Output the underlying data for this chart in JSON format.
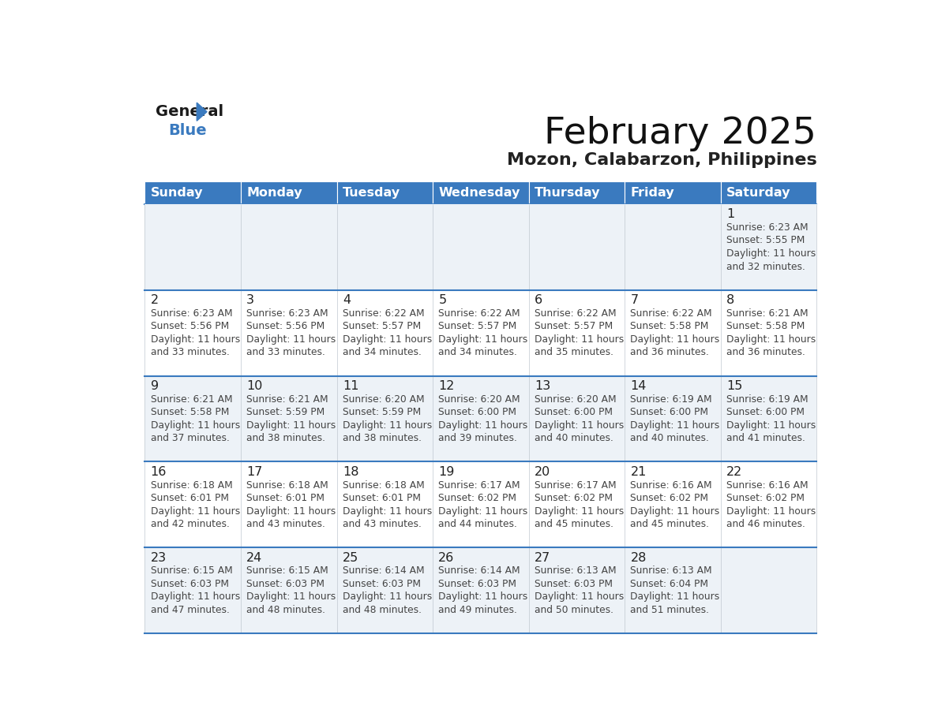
{
  "title": "February 2025",
  "subtitle": "Mozon, Calabarzon, Philippines",
  "header_bg": "#3a7abf",
  "header_text": "#ffffff",
  "day_names": [
    "Sunday",
    "Monday",
    "Tuesday",
    "Wednesday",
    "Thursday",
    "Friday",
    "Saturday"
  ],
  "cell_bg_light": "#edf2f7",
  "cell_bg_white": "#ffffff",
  "separator_color": "#3a7abf",
  "text_color": "#444444",
  "day_number_color": "#222222",
  "calendar": [
    [
      null,
      null,
      null,
      null,
      null,
      null,
      {
        "day": 1,
        "sunrise": "6:23 AM",
        "sunset": "5:55 PM",
        "daylight": "11 hours and 32 minutes."
      }
    ],
    [
      {
        "day": 2,
        "sunrise": "6:23 AM",
        "sunset": "5:56 PM",
        "daylight": "11 hours and 33 minutes."
      },
      {
        "day": 3,
        "sunrise": "6:23 AM",
        "sunset": "5:56 PM",
        "daylight": "11 hours and 33 minutes."
      },
      {
        "day": 4,
        "sunrise": "6:22 AM",
        "sunset": "5:57 PM",
        "daylight": "11 hours and 34 minutes."
      },
      {
        "day": 5,
        "sunrise": "6:22 AM",
        "sunset": "5:57 PM",
        "daylight": "11 hours and 34 minutes."
      },
      {
        "day": 6,
        "sunrise": "6:22 AM",
        "sunset": "5:57 PM",
        "daylight": "11 hours and 35 minutes."
      },
      {
        "day": 7,
        "sunrise": "6:22 AM",
        "sunset": "5:58 PM",
        "daylight": "11 hours and 36 minutes."
      },
      {
        "day": 8,
        "sunrise": "6:21 AM",
        "sunset": "5:58 PM",
        "daylight": "11 hours and 36 minutes."
      }
    ],
    [
      {
        "day": 9,
        "sunrise": "6:21 AM",
        "sunset": "5:58 PM",
        "daylight": "11 hours and 37 minutes."
      },
      {
        "day": 10,
        "sunrise": "6:21 AM",
        "sunset": "5:59 PM",
        "daylight": "11 hours and 38 minutes."
      },
      {
        "day": 11,
        "sunrise": "6:20 AM",
        "sunset": "5:59 PM",
        "daylight": "11 hours and 38 minutes."
      },
      {
        "day": 12,
        "sunrise": "6:20 AM",
        "sunset": "6:00 PM",
        "daylight": "11 hours and 39 minutes."
      },
      {
        "day": 13,
        "sunrise": "6:20 AM",
        "sunset": "6:00 PM",
        "daylight": "11 hours and 40 minutes."
      },
      {
        "day": 14,
        "sunrise": "6:19 AM",
        "sunset": "6:00 PM",
        "daylight": "11 hours and 40 minutes."
      },
      {
        "day": 15,
        "sunrise": "6:19 AM",
        "sunset": "6:00 PM",
        "daylight": "11 hours and 41 minutes."
      }
    ],
    [
      {
        "day": 16,
        "sunrise": "6:18 AM",
        "sunset": "6:01 PM",
        "daylight": "11 hours and 42 minutes."
      },
      {
        "day": 17,
        "sunrise": "6:18 AM",
        "sunset": "6:01 PM",
        "daylight": "11 hours and 43 minutes."
      },
      {
        "day": 18,
        "sunrise": "6:18 AM",
        "sunset": "6:01 PM",
        "daylight": "11 hours and 43 minutes."
      },
      {
        "day": 19,
        "sunrise": "6:17 AM",
        "sunset": "6:02 PM",
        "daylight": "11 hours and 44 minutes."
      },
      {
        "day": 20,
        "sunrise": "6:17 AM",
        "sunset": "6:02 PM",
        "daylight": "11 hours and 45 minutes."
      },
      {
        "day": 21,
        "sunrise": "6:16 AM",
        "sunset": "6:02 PM",
        "daylight": "11 hours and 45 minutes."
      },
      {
        "day": 22,
        "sunrise": "6:16 AM",
        "sunset": "6:02 PM",
        "daylight": "11 hours and 46 minutes."
      }
    ],
    [
      {
        "day": 23,
        "sunrise": "6:15 AM",
        "sunset": "6:03 PM",
        "daylight": "11 hours and 47 minutes."
      },
      {
        "day": 24,
        "sunrise": "6:15 AM",
        "sunset": "6:03 PM",
        "daylight": "11 hours and 48 minutes."
      },
      {
        "day": 25,
        "sunrise": "6:14 AM",
        "sunset": "6:03 PM",
        "daylight": "11 hours and 48 minutes."
      },
      {
        "day": 26,
        "sunrise": "6:14 AM",
        "sunset": "6:03 PM",
        "daylight": "11 hours and 49 minutes."
      },
      {
        "day": 27,
        "sunrise": "6:13 AM",
        "sunset": "6:03 PM",
        "daylight": "11 hours and 50 minutes."
      },
      {
        "day": 28,
        "sunrise": "6:13 AM",
        "sunset": "6:04 PM",
        "daylight": "11 hours and 51 minutes."
      },
      null
    ]
  ]
}
